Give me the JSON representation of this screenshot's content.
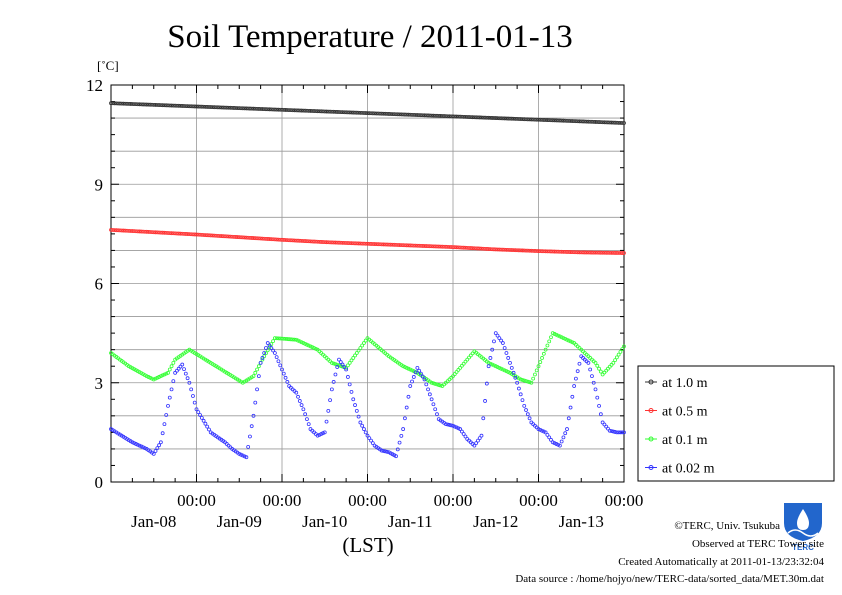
{
  "chart_data": {
    "type": "line",
    "title": "Soil Temperature / 2011-01-13",
    "unit_label": "[˚C]",
    "xlabel": "(LST)",
    "ylim": [
      0,
      12
    ],
    "yticks": [
      0,
      3,
      6,
      9,
      12
    ],
    "xlim_hours": [
      0,
      144
    ],
    "xticks": [
      {
        "time": "00:00",
        "date": "Jan-08"
      },
      {
        "time": "00:00",
        "date": "Jan-09"
      },
      {
        "time": "00:00",
        "date": "Jan-10"
      },
      {
        "time": "00:00",
        "date": "Jan-11"
      },
      {
        "time": "00:00",
        "date": "Jan-12"
      },
      {
        "time": "00:00",
        "date": "Jan-13"
      }
    ],
    "grid": true,
    "legend_position": "right-bottom",
    "series": [
      {
        "name": "at 1.0 m",
        "color": "#333333",
        "x": [
          0,
          24,
          48,
          72,
          96,
          120,
          144
        ],
        "y": [
          11.45,
          11.35,
          11.25,
          11.15,
          11.05,
          10.95,
          10.85
        ]
      },
      {
        "name": "at 0.5 m",
        "color": "#ff3333",
        "x": [
          0,
          12,
          24,
          36,
          48,
          60,
          72,
          84,
          96,
          108,
          120,
          132,
          144
        ],
        "y": [
          7.62,
          7.55,
          7.48,
          7.4,
          7.32,
          7.25,
          7.2,
          7.15,
          7.1,
          7.03,
          6.98,
          6.94,
          6.92
        ]
      },
      {
        "name": "at 0.1 m",
        "color": "#33ff33",
        "x": [
          0,
          5,
          10,
          12,
          16,
          18,
          22,
          28,
          34,
          37,
          40,
          43,
          46,
          52,
          58,
          62,
          66,
          72,
          78,
          82,
          86,
          90,
          93,
          96,
          102,
          106,
          108,
          112,
          115,
          118,
          124,
          130,
          136,
          138,
          141,
          144
        ],
        "y": [
          3.9,
          3.5,
          3.2,
          3.1,
          3.3,
          3.7,
          4.0,
          3.6,
          3.2,
          3.0,
          3.2,
          3.8,
          4.35,
          4.3,
          4.0,
          3.6,
          3.45,
          4.35,
          3.8,
          3.5,
          3.3,
          3.0,
          2.9,
          3.2,
          3.95,
          3.6,
          3.5,
          3.3,
          3.1,
          3.0,
          4.5,
          4.2,
          3.6,
          3.25,
          3.6,
          4.1
        ]
      },
      {
        "name": "at 0.02 m",
        "color": "#3333ff",
        "x": [
          0,
          6,
          10,
          12,
          14,
          16,
          18,
          20,
          22,
          24,
          28,
          32,
          34,
          36,
          38,
          40,
          42,
          44,
          46,
          48,
          50,
          52,
          54,
          56,
          58,
          60,
          62,
          64,
          66,
          68,
          70,
          72,
          74,
          76,
          78,
          80,
          82,
          84,
          86,
          88,
          90,
          92,
          94,
          96,
          98,
          100,
          102,
          104,
          106,
          108,
          110,
          112,
          114,
          116,
          118,
          120,
          122,
          124,
          126,
          128,
          130,
          132,
          134,
          136,
          138,
          140,
          142,
          144
        ],
        "y": [
          1.6,
          1.2,
          1.0,
          0.85,
          1.2,
          2.3,
          3.3,
          3.55,
          3.0,
          2.2,
          1.5,
          1.2,
          1.0,
          0.85,
          0.75,
          2.0,
          3.6,
          4.2,
          3.9,
          3.4,
          2.9,
          2.7,
          2.2,
          1.6,
          1.4,
          1.5,
          2.8,
          3.7,
          3.4,
          2.5,
          1.8,
          1.4,
          1.1,
          0.95,
          0.9,
          0.78,
          1.6,
          2.9,
          3.45,
          3.1,
          2.5,
          1.9,
          1.75,
          1.7,
          1.6,
          1.3,
          1.1,
          1.4,
          3.5,
          4.5,
          4.2,
          3.6,
          3.0,
          2.3,
          1.8,
          1.6,
          1.5,
          1.2,
          1.1,
          1.6,
          2.9,
          3.8,
          3.6,
          2.8,
          1.8,
          1.55,
          1.5,
          1.5
        ]
      }
    ]
  },
  "credits": {
    "copyright": "©TERC, Univ. Tsukuba",
    "observed": "Observed at TERC Tower site",
    "created": "Created Automatically at 2011-01-13/23:32:04",
    "source": "Data source : /home/hojyo/new/TERC-data/sorted_data/MET.30m.dat"
  },
  "logo": {
    "text": "TERC",
    "color": "#2266cc"
  }
}
